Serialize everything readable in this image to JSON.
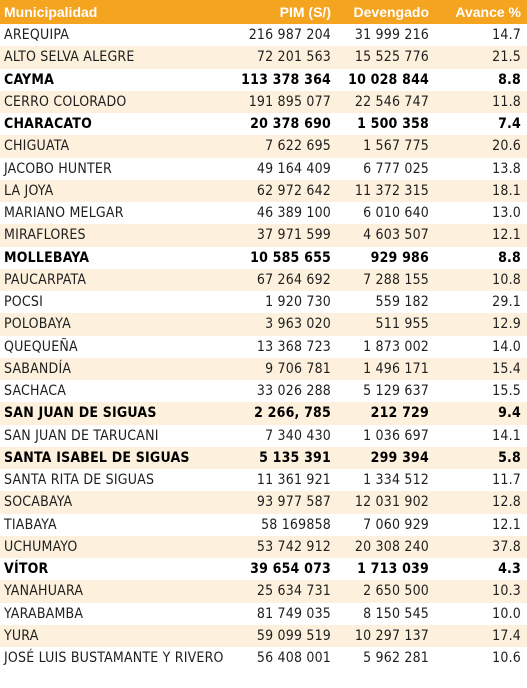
{
  "header": {
    "municipalidad": "Municipalidad",
    "pim": "PIM (S/)",
    "devengado": "Devengado",
    "avance": "Avance %"
  },
  "rows": [
    {
      "name": "AREQUIPA",
      "pim": "216 987 204",
      "devengado": "31 999 216",
      "avance": "14.7",
      "bold": false
    },
    {
      "name": "ALTO SELVA ALEGRE",
      "pim": "72 201 563",
      "devengado": "15 525 776",
      "avance": "21.5",
      "bold": false
    },
    {
      "name": "CAYMA",
      "pim": "113 378 364",
      "devengado": "10 028 844",
      "avance": "8.8",
      "bold": true
    },
    {
      "name": "CERRO COLORADO",
      "pim": "191 895 077",
      "devengado": "22 546 747",
      "avance": "11.8",
      "bold": false
    },
    {
      "name": "CHARACATO",
      "pim": "20 378 690",
      "devengado": "1 500 358",
      "avance": "7.4",
      "bold": true
    },
    {
      "name": "CHIGUATA",
      "pim": "7 622 695",
      "devengado": "1 567 775",
      "avance": "20.6",
      "bold": false
    },
    {
      "name": "JACOBO HUNTER",
      "pim": "49 164 409",
      "devengado": "6 777 025",
      "avance": "13.8",
      "bold": false
    },
    {
      "name": "LA JOYA",
      "pim": "62 972 642",
      "devengado": "11 372 315",
      "avance": "18.1",
      "bold": false
    },
    {
      "name": "MARIANO MELGAR",
      "pim": "46 389 100",
      "devengado": "6 010 640",
      "avance": "13.0",
      "bold": false
    },
    {
      "name": "MIRAFLORES",
      "pim": "37 971 599",
      "devengado": "4 603 507",
      "avance": "12.1",
      "bold": false
    },
    {
      "name": "MOLLEBAYA",
      "pim": "10 585 655",
      "devengado": "929 986",
      "avance": "8.8",
      "bold": true
    },
    {
      "name": "PAUCARPATA",
      "pim": "67 264 692",
      "devengado": "7 288 155",
      "avance": "10.8",
      "bold": false
    },
    {
      "name": "POCSI",
      "pim": "1 920 730",
      "devengado": "559 182",
      "avance": "29.1",
      "bold": false
    },
    {
      "name": "POLOBAYA",
      "pim": "3 963 020",
      "devengado": "511 955",
      "avance": "12.9",
      "bold": false
    },
    {
      "name": "QUEQUEÑA",
      "pim": "13 368 723",
      "devengado": "1 873 002",
      "avance": "14.0",
      "bold": false
    },
    {
      "name": "SABANDÍA",
      "pim": "9 706 781",
      "devengado": "1 496 171",
      "avance": "15.4",
      "bold": false
    },
    {
      "name": "SACHACA",
      "pim": "33 026 288",
      "devengado": "5 129 637",
      "avance": "15.5",
      "bold": false
    },
    {
      "name": "SAN JUAN DE SIGUAS",
      "pim": "2 266, 785",
      "devengado": "212 729",
      "avance": "9.4",
      "bold": true
    },
    {
      "name": "SAN JUAN DE TARUCANI",
      "pim": "7 340 430",
      "devengado": "1 036 697",
      "avance": "14.1",
      "bold": false
    },
    {
      "name": "SANTA ISABEL DE SIGUAS",
      "pim": "5 135 391",
      "devengado": "299 394",
      "avance": "5.8",
      "bold": true
    },
    {
      "name": "SANTA RITA DE SIGUAS",
      "pim": "11 361 921",
      "devengado": "1 334 512",
      "avance": "11.7",
      "bold": false
    },
    {
      "name": "SOCABAYA",
      "pim": "93 977 587",
      "devengado": "12 031 902",
      "avance": "12.8",
      "bold": false
    },
    {
      "name": "TIABAYA",
      "pim": "58 169858",
      "devengado": "7 060 929",
      "avance": "12.1",
      "bold": false
    },
    {
      "name": "UCHUMAYO",
      "pim": "53 742 912",
      "devengado": "20 308 240",
      "avance": "37.8",
      "bold": false
    },
    {
      "name": "VÍTOR",
      "pim": "39 654 073",
      "devengado": "1 713 039",
      "avance": "4.3",
      "bold": true
    },
    {
      "name": "YANAHUARA",
      "pim": "25 634 731",
      "devengado": "2 650 500",
      "avance": "10.3",
      "bold": false
    },
    {
      "name": "YARABAMBA",
      "pim": "81 749 035",
      "devengado": "8 150 545",
      "avance": "10.0",
      "bold": false
    },
    {
      "name": "YURA",
      "pim": "59 099 519",
      "devengado": "10 297 137",
      "avance": "17.4",
      "bold": false
    },
    {
      "name": "JOSÉ LUIS BUSTAMANTE Y RIVERO",
      "pim": "56 408 001",
      "devengado": "5 962 281",
      "avance": "10.6",
      "bold": false
    }
  ],
  "colors": {
    "header_bg": "#f5a41f",
    "stripe_bg": "#fdf1dd"
  }
}
